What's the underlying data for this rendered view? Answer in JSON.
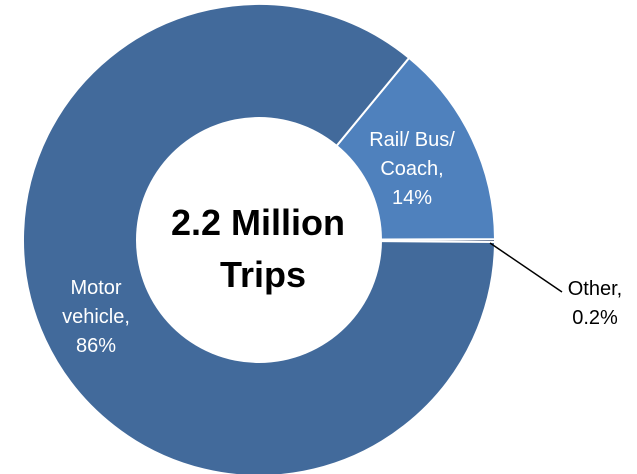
{
  "chart_data": {
    "type": "pie",
    "variant": "donut",
    "center_title": [
      "2.2 Million",
      "Trips"
    ],
    "slices": [
      {
        "label_lines": [
          "Motor",
          "vehicle,",
          "86%"
        ],
        "value": 86,
        "color": "#426a9b"
      },
      {
        "label_lines": [
          "Rail/ Bus/",
          "Coach,",
          "14%"
        ],
        "value": 14,
        "color": "#4f81bd"
      },
      {
        "label_lines": [
          "Other,",
          "0.2%"
        ],
        "value": 0.2,
        "color": "#1f3864"
      }
    ],
    "legend": "none"
  }
}
